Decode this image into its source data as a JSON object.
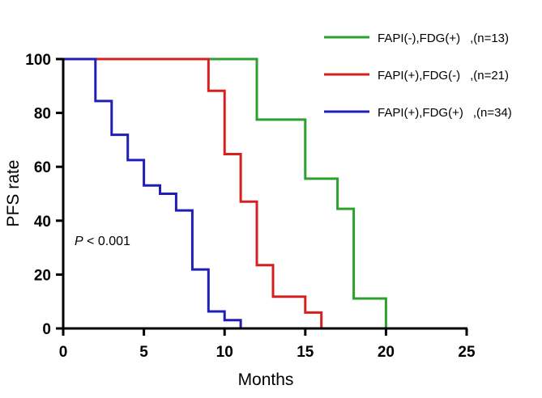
{
  "chart_data": {
    "type": "line",
    "title": "",
    "xlabel": "Months",
    "ylabel": "PFS rate",
    "xlim": [
      0,
      25
    ],
    "ylim": [
      0,
      100
    ],
    "xticks": [
      0,
      5,
      10,
      15,
      20,
      25
    ],
    "yticks": [
      0,
      20,
      40,
      60,
      80,
      100
    ],
    "grid": false,
    "legend_position": "top-right",
    "annotation": {
      "italic": "P",
      "text": " < 0.001",
      "x": 0.7,
      "y": 31
    },
    "series": [
      {
        "name": "FAPI(-),FDG(+)",
        "n_label": ",(n=13)",
        "color": "#2ca02c",
        "step_points": [
          [
            0,
            100
          ],
          [
            12,
            100
          ],
          [
            12,
            77.5
          ],
          [
            15,
            77.5
          ],
          [
            15,
            55.6
          ],
          [
            17,
            55.6
          ],
          [
            17,
            44.4
          ],
          [
            18,
            44.4
          ],
          [
            18,
            11.1
          ],
          [
            20,
            11.1
          ],
          [
            20,
            0
          ]
        ]
      },
      {
        "name": "FAPI(+),FDG(-)",
        "n_label": ",(n=21)",
        "color": "#d62020",
        "step_points": [
          [
            0,
            100
          ],
          [
            9,
            100
          ],
          [
            9,
            88.2
          ],
          [
            10,
            88.2
          ],
          [
            10,
            64.7
          ],
          [
            11,
            64.7
          ],
          [
            11,
            47.1
          ],
          [
            12,
            47.1
          ],
          [
            12,
            23.5
          ],
          [
            13,
            23.5
          ],
          [
            13,
            11.8
          ],
          [
            15,
            11.8
          ],
          [
            15,
            5.9
          ],
          [
            16,
            5.9
          ],
          [
            16,
            0
          ]
        ]
      },
      {
        "name": "FAPI(+),FDG(+)",
        "n_label": ",(n=34)",
        "color": "#1f1fb4",
        "step_points": [
          [
            0,
            100
          ],
          [
            2,
            100
          ],
          [
            2,
            84.4
          ],
          [
            3,
            84.4
          ],
          [
            3,
            71.9
          ],
          [
            4,
            71.9
          ],
          [
            4,
            62.5
          ],
          [
            5,
            62.5
          ],
          [
            5,
            53.1
          ],
          [
            6,
            53.1
          ],
          [
            6,
            50
          ],
          [
            7,
            50
          ],
          [
            7,
            43.8
          ],
          [
            8,
            43.8
          ],
          [
            8,
            21.9
          ],
          [
            9,
            21.9
          ],
          [
            9,
            6.3
          ],
          [
            10,
            6.3
          ],
          [
            10,
            3.1
          ],
          [
            11,
            3.1
          ],
          [
            11,
            0
          ]
        ]
      }
    ]
  }
}
